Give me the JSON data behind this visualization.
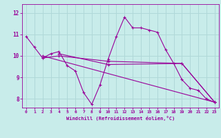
{
  "background_color": "#c8ecea",
  "grid_color": "#b0d8d8",
  "line_color": "#990099",
  "xlabel": "Windchill (Refroidissement éolien,°C)",
  "xlim": [
    -0.5,
    23.5
  ],
  "ylim": [
    7.6,
    12.4
  ],
  "yticks": [
    8,
    9,
    10,
    11,
    12
  ],
  "xticks": [
    0,
    1,
    2,
    3,
    4,
    5,
    6,
    7,
    8,
    9,
    10,
    11,
    12,
    13,
    14,
    15,
    16,
    17,
    18,
    19,
    20,
    21,
    22,
    23
  ],
  "series": [
    {
      "x": [
        0,
        1,
        2,
        3,
        4,
        5,
        6,
        7,
        8,
        9,
        10,
        11,
        12,
        13,
        14,
        15,
        16,
        17,
        18,
        19,
        20,
        21,
        22,
        23
      ],
      "y": [
        10.9,
        10.4,
        9.9,
        10.1,
        10.2,
        9.55,
        9.3,
        8.3,
        7.75,
        8.65,
        9.85,
        10.9,
        11.8,
        11.3,
        11.3,
        11.2,
        11.1,
        10.3,
        9.65,
        8.9,
        8.5,
        8.4,
        8.0,
        7.85
      ]
    },
    {
      "x": [
        2,
        4,
        10,
        19,
        23
      ],
      "y": [
        9.9,
        10.0,
        9.75,
        9.65,
        7.85
      ]
    },
    {
      "x": [
        2,
        23
      ],
      "y": [
        10.0,
        7.85
      ]
    },
    {
      "x": [
        4,
        10,
        19,
        23
      ],
      "y": [
        10.1,
        9.6,
        9.65,
        7.85
      ]
    }
  ]
}
